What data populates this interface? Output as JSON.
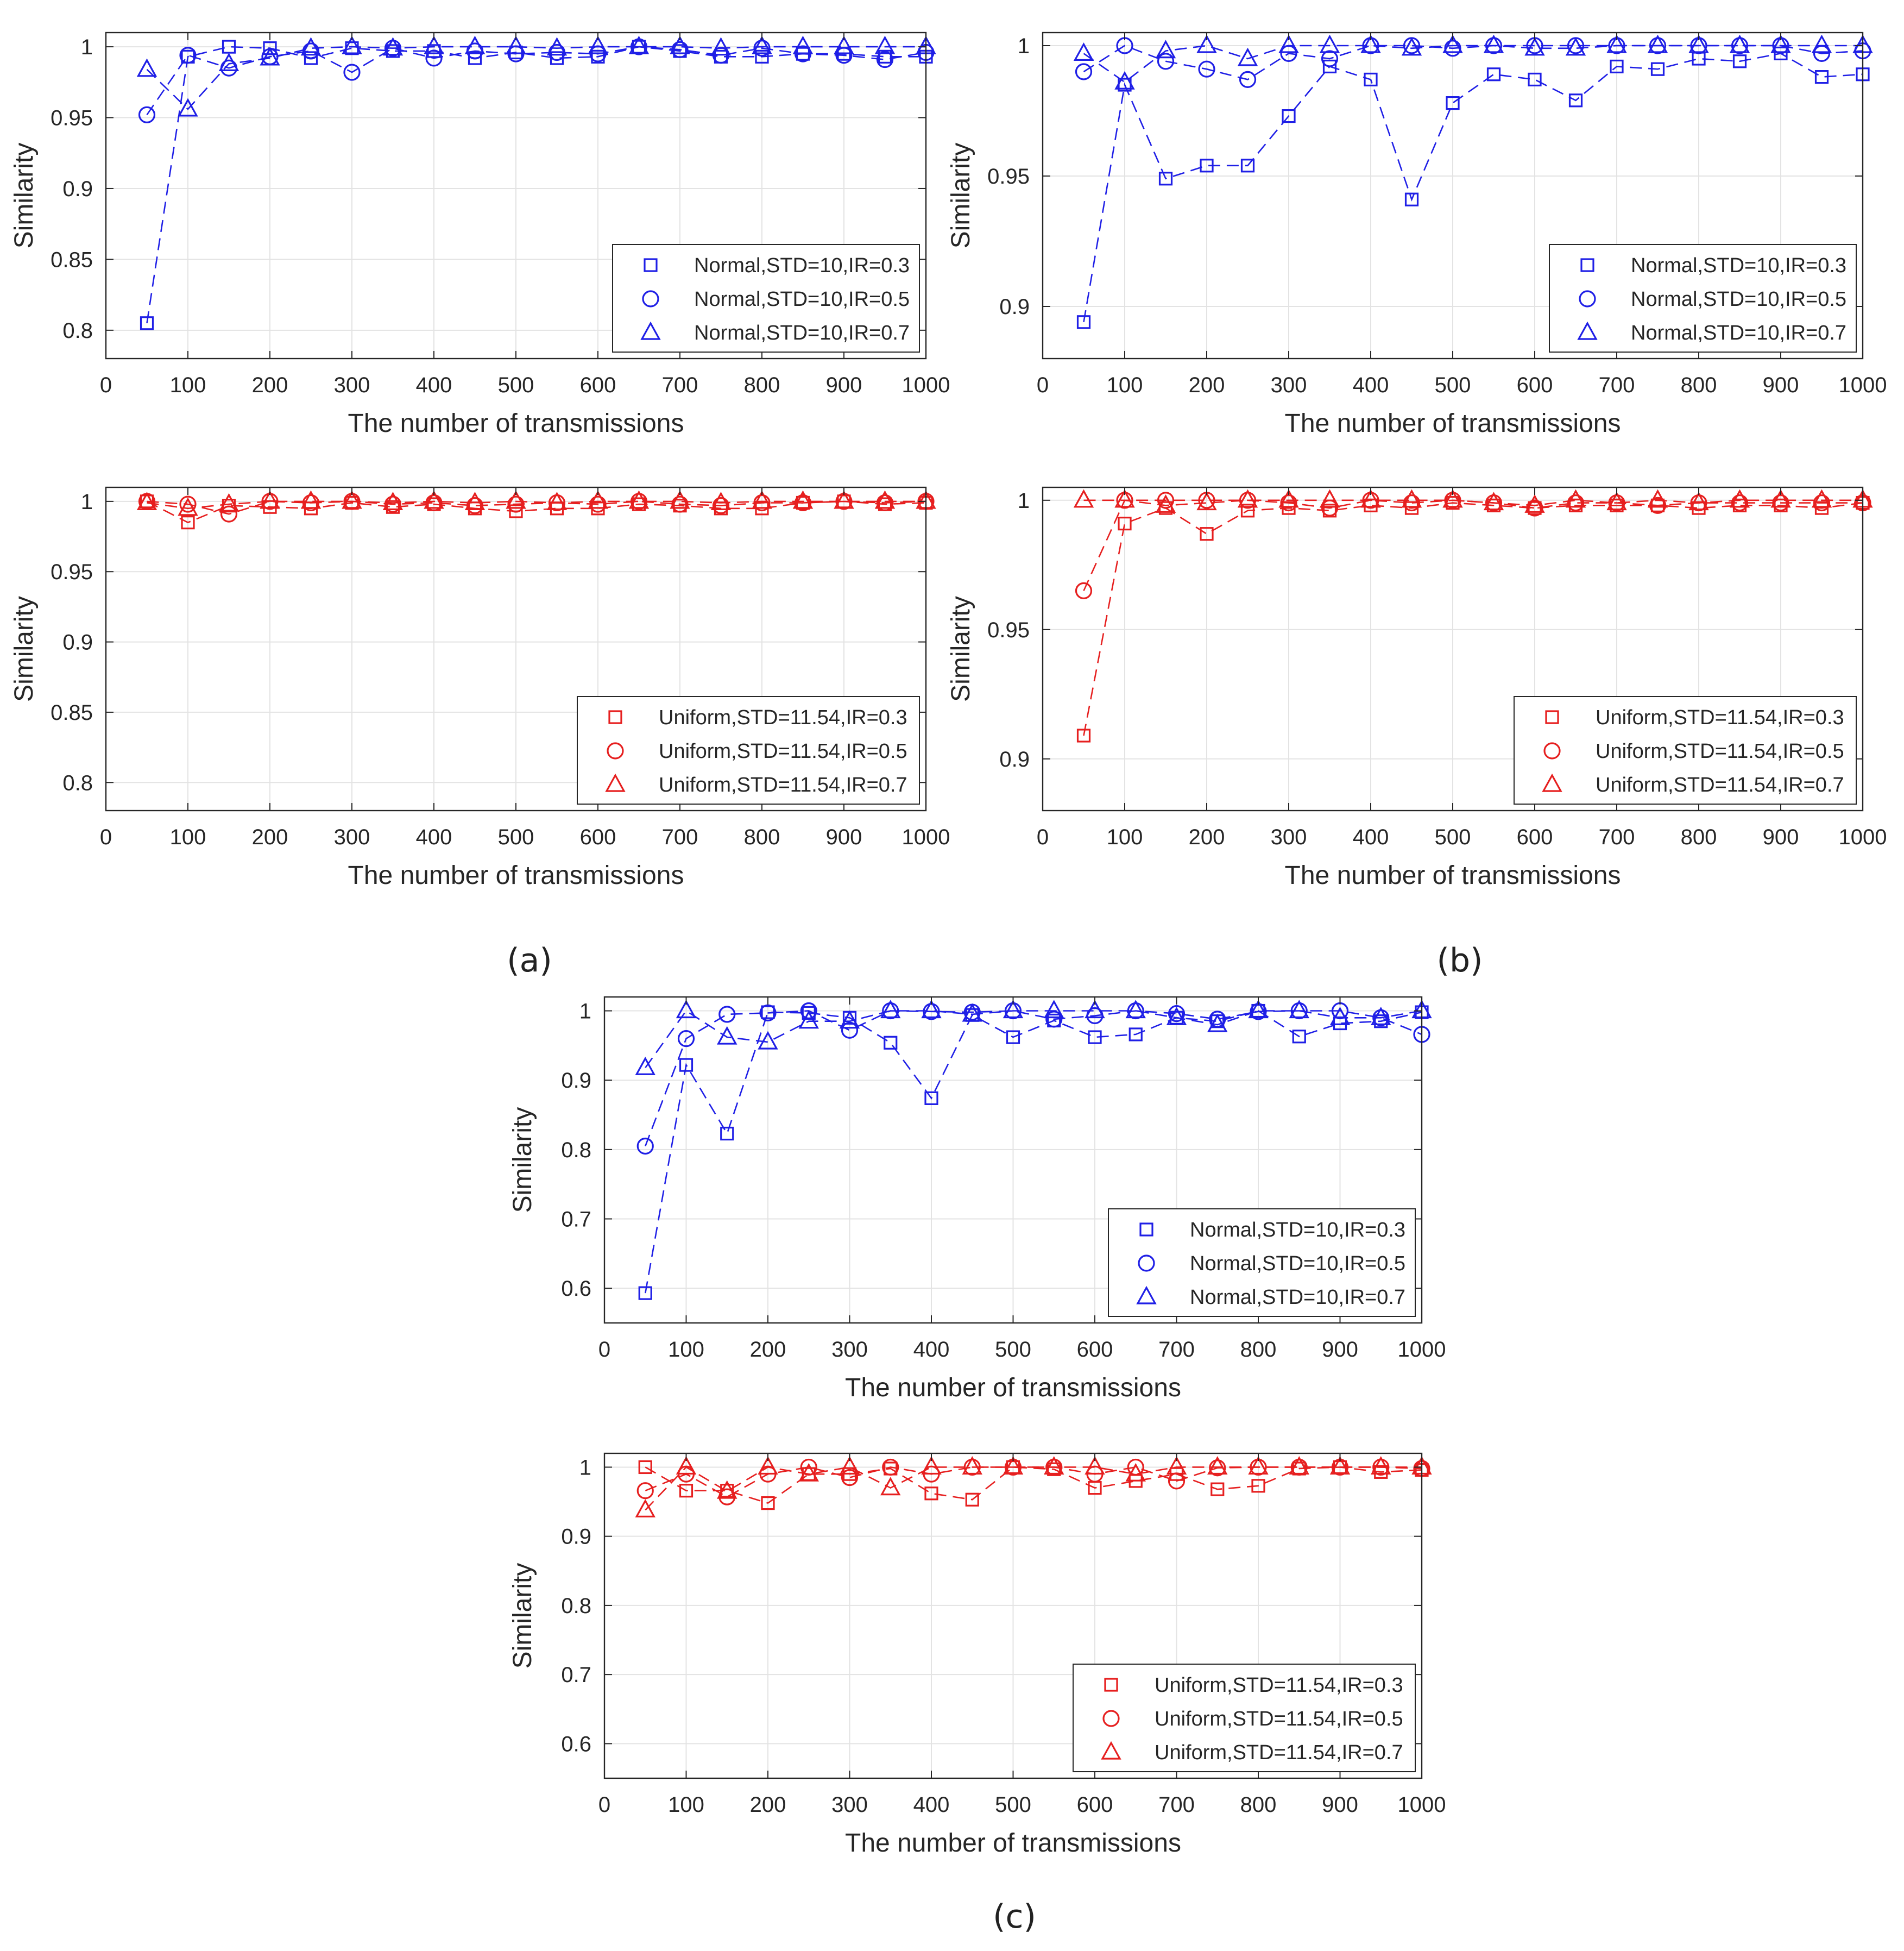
{
  "figure": {
    "captions": [
      "(a)",
      "(b)",
      "(c)"
    ],
    "colors": {
      "normal": "#1f1fe6",
      "uniform": "#e61f1f",
      "grid": "#e3e3e3",
      "axis": "#262626"
    }
  },
  "chart_data": [
    {
      "id": "a-normal",
      "type": "line",
      "panel": "(a)",
      "xlabel": "The number of transmissions",
      "ylabel": "Similarity",
      "xlim": [
        0,
        1000
      ],
      "ylim": [
        0.78,
        1.01
      ],
      "xticks": [
        0,
        100,
        200,
        300,
        400,
        500,
        600,
        700,
        800,
        900,
        1000
      ],
      "yticks": [
        0.8,
        0.85,
        0.9,
        0.95,
        1
      ],
      "ytick_labels": [
        "0.8",
        "0.85",
        "0.9",
        "0.95",
        "1"
      ],
      "legend_position": "bottom-right",
      "grid": true,
      "color_key": "normal",
      "x": [
        50,
        100,
        150,
        200,
        250,
        300,
        350,
        400,
        450,
        500,
        550,
        600,
        650,
        700,
        750,
        800,
        850,
        900,
        950,
        1000
      ],
      "series": [
        {
          "name": "Normal,STD=10,IR=0.3",
          "marker": "square",
          "values": [
            0.805,
            0.993,
            1.0,
            0.999,
            0.992,
            0.999,
            0.997,
            0.997,
            0.992,
            0.996,
            0.992,
            0.993,
            1.0,
            0.997,
            0.993,
            0.993,
            0.995,
            0.995,
            0.993,
            0.993
          ]
        },
        {
          "name": "Normal,STD=10,IR=0.5",
          "marker": "circle",
          "values": [
            0.952,
            0.994,
            0.985,
            0.993,
            0.997,
            0.982,
            0.999,
            0.992,
            0.997,
            0.995,
            0.996,
            0.995,
            1.0,
            0.998,
            0.994,
            0.999,
            0.995,
            0.994,
            0.991,
            0.996
          ]
        },
        {
          "name": "Normal,STD=10,IR=0.7",
          "marker": "triangle",
          "values": [
            0.984,
            0.956,
            0.988,
            0.992,
            0.999,
            1.0,
            0.999,
            1.0,
            1.0,
            1.0,
            0.999,
            1.0,
            1.0,
            1.0,
            0.999,
            1.0,
            1.0,
            1.0,
            1.0,
            1.0
          ]
        }
      ]
    },
    {
      "id": "a-uniform",
      "type": "line",
      "panel": "(a)",
      "xlabel": "The number of transmissions",
      "ylabel": "Similarity",
      "xlim": [
        0,
        1000
      ],
      "ylim": [
        0.78,
        1.01
      ],
      "xticks": [
        0,
        100,
        200,
        300,
        400,
        500,
        600,
        700,
        800,
        900,
        1000
      ],
      "yticks": [
        0.8,
        0.85,
        0.9,
        0.95,
        1
      ],
      "ytick_labels": [
        "0.8",
        "0.85",
        "0.9",
        "0.95",
        "1"
      ],
      "legend_position": "bottom-right",
      "grid": true,
      "color_key": "uniform",
      "x": [
        50,
        100,
        150,
        200,
        250,
        300,
        350,
        400,
        450,
        500,
        550,
        600,
        650,
        700,
        750,
        800,
        850,
        900,
        950,
        1000
      ],
      "series": [
        {
          "name": "Uniform,STD=11.54,IR=0.3",
          "marker": "square",
          "values": [
            1.0,
            0.985,
            0.997,
            0.996,
            0.995,
            0.999,
            0.996,
            0.998,
            0.995,
            0.993,
            0.995,
            0.995,
            0.998,
            0.997,
            0.995,
            0.995,
            0.999,
            1.0,
            0.998,
            0.999
          ]
        },
        {
          "name": "Uniform,STD=11.54,IR=0.5",
          "marker": "circle",
          "values": [
            1.0,
            0.998,
            0.991,
            1.0,
            0.999,
            1.0,
            0.998,
            0.999,
            0.997,
            0.998,
            0.999,
            0.998,
            1.0,
            0.998,
            0.997,
            0.999,
            0.999,
            1.0,
            0.999,
            1.0
          ]
        },
        {
          "name": "Uniform,STD=11.54,IR=0.7",
          "marker": "triangle",
          "values": [
            0.999,
            0.995,
            0.998,
            1.0,
            1.0,
            1.0,
            0.999,
            1.0,
            0.999,
            1.0,
            0.999,
            1.0,
            1.0,
            1.0,
            0.999,
            1.0,
            1.0,
            1.0,
            1.0,
            1.0
          ]
        }
      ]
    },
    {
      "id": "b-normal",
      "type": "line",
      "panel": "(b)",
      "xlabel": "The number of transmissions",
      "ylabel": "Similarity",
      "xlim": [
        0,
        1000
      ],
      "ylim": [
        0.88,
        1.005
      ],
      "xticks": [
        0,
        100,
        200,
        300,
        400,
        500,
        600,
        700,
        800,
        900,
        1000
      ],
      "yticks": [
        0.9,
        0.95,
        1
      ],
      "ytick_labels": [
        "0.9",
        "0.95",
        "1"
      ],
      "legend_position": "bottom-right",
      "grid": true,
      "color_key": "normal",
      "x": [
        50,
        100,
        150,
        200,
        250,
        300,
        350,
        400,
        450,
        500,
        550,
        600,
        650,
        700,
        750,
        800,
        850,
        900,
        950,
        1000
      ],
      "series": [
        {
          "name": "Normal,STD=10,IR=0.3",
          "marker": "square",
          "values": [
            0.894,
            0.985,
            0.949,
            0.954,
            0.954,
            0.973,
            0.992,
            0.987,
            0.941,
            0.978,
            0.989,
            0.987,
            0.979,
            0.992,
            0.991,
            0.995,
            0.994,
            0.997,
            0.988,
            0.989
          ]
        },
        {
          "name": "Normal,STD=10,IR=0.5",
          "marker": "circle",
          "values": [
            0.99,
            1.0,
            0.994,
            0.991,
            0.987,
            0.997,
            0.995,
            1.0,
            1.0,
            0.999,
            1.0,
            1.0,
            1.0,
            1.0,
            1.0,
            1.0,
            1.0,
            1.0,
            0.997,
            0.998
          ]
        },
        {
          "name": "Normal,STD=10,IR=0.7",
          "marker": "triangle",
          "values": [
            0.997,
            0.986,
            0.998,
            1.0,
            0.995,
            1.0,
            1.0,
            1.0,
            0.999,
            1.0,
            1.0,
            0.999,
            0.999,
            1.0,
            1.0,
            1.0,
            1.0,
            1.0,
            1.0,
            1.0
          ]
        }
      ]
    },
    {
      "id": "b-uniform",
      "type": "line",
      "panel": "(b)",
      "xlabel": "The number of transmissions",
      "ylabel": "Similarity",
      "xlim": [
        0,
        1000
      ],
      "ylim": [
        0.88,
        1.005
      ],
      "xticks": [
        0,
        100,
        200,
        300,
        400,
        500,
        600,
        700,
        800,
        900,
        1000
      ],
      "yticks": [
        0.9,
        0.95,
        1
      ],
      "ytick_labels": [
        "0.9",
        "0.95",
        "1"
      ],
      "legend_position": "bottom-right",
      "grid": true,
      "color_key": "uniform",
      "x": [
        50,
        100,
        150,
        200,
        250,
        300,
        350,
        400,
        450,
        500,
        550,
        600,
        650,
        700,
        750,
        800,
        850,
        900,
        950,
        1000
      ],
      "series": [
        {
          "name": "Uniform,STD=11.54,IR=0.3",
          "marker": "square",
          "values": [
            0.909,
            0.991,
            0.997,
            0.987,
            0.996,
            0.997,
            0.996,
            0.998,
            0.997,
            0.999,
            0.998,
            0.997,
            0.998,
            0.998,
            0.998,
            0.997,
            0.998,
            0.998,
            0.997,
            0.999
          ]
        },
        {
          "name": "Uniform,STD=11.54,IR=0.5",
          "marker": "circle",
          "values": [
            0.965,
            1.0,
            1.0,
            1.0,
            1.0,
            0.999,
            0.997,
            1.0,
            0.999,
            1.0,
            0.999,
            0.997,
            0.999,
            0.999,
            0.998,
            0.999,
            0.999,
            0.999,
            0.999,
            0.999
          ]
        },
        {
          "name": "Uniform,STD=11.54,IR=0.7",
          "marker": "triangle",
          "values": [
            1.0,
            1.0,
            0.998,
            0.999,
            1.0,
            1.0,
            1.0,
            1.0,
            1.0,
            1.0,
            0.999,
            0.998,
            1.0,
            0.999,
            1.0,
            0.999,
            1.0,
            1.0,
            1.0,
            1.0
          ]
        }
      ]
    },
    {
      "id": "c-normal",
      "type": "line",
      "panel": "(c)",
      "xlabel": "The number of transmissions",
      "ylabel": "Similarity",
      "xlim": [
        0,
        1000
      ],
      "ylim": [
        0.55,
        1.02
      ],
      "xticks": [
        0,
        100,
        200,
        300,
        400,
        500,
        600,
        700,
        800,
        900,
        1000
      ],
      "yticks": [
        0.6,
        0.7,
        0.8,
        0.9,
        1
      ],
      "ytick_labels": [
        "0.6",
        "0.7",
        "0.8",
        "0.9",
        "1"
      ],
      "legend_position": "bottom-right",
      "grid": true,
      "color_key": "normal",
      "x": [
        50,
        100,
        150,
        200,
        250,
        300,
        350,
        400,
        450,
        500,
        550,
        600,
        650,
        700,
        750,
        800,
        850,
        900,
        950,
        1000
      ],
      "series": [
        {
          "name": "Normal,STD=10,IR=0.3",
          "marker": "square",
          "values": [
            0.593,
            0.922,
            0.823,
            0.998,
            0.997,
            0.99,
            0.954,
            0.874,
            0.994,
            0.962,
            0.986,
            0.962,
            0.966,
            0.99,
            0.985,
            1.0,
            0.963,
            0.982,
            0.985,
            0.998
          ]
        },
        {
          "name": "Normal,STD=10,IR=0.5",
          "marker": "circle",
          "values": [
            0.805,
            0.96,
            0.995,
            0.997,
            1.0,
            0.972,
            1.0,
            0.999,
            0.998,
            1.0,
            0.988,
            0.993,
            1.0,
            0.996,
            0.988,
            0.999,
            1.0,
            1.0,
            0.99,
            0.966
          ]
        },
        {
          "name": "Normal,STD=10,IR=0.7",
          "marker": "triangle",
          "values": [
            0.918,
            1.0,
            0.962,
            0.955,
            0.985,
            0.985,
            1.0,
            1.0,
            0.995,
            1.0,
            1.0,
            1.0,
            1.0,
            0.99,
            0.98,
            1.0,
            1.0,
            0.99,
            0.99,
            1.0
          ]
        }
      ]
    },
    {
      "id": "c-uniform",
      "type": "line",
      "panel": "(c)",
      "xlabel": "The number of transmissions",
      "ylabel": "Similarity",
      "xlim": [
        0,
        1000
      ],
      "ylim": [
        0.55,
        1.02
      ],
      "xticks": [
        0,
        100,
        200,
        300,
        400,
        500,
        600,
        700,
        800,
        900,
        1000
      ],
      "yticks": [
        0.6,
        0.7,
        0.8,
        0.9,
        1
      ],
      "ytick_labels": [
        "0.6",
        "0.7",
        "0.8",
        "0.9",
        "1"
      ],
      "legend_position": "bottom-right",
      "grid": true,
      "color_key": "uniform",
      "x": [
        50,
        100,
        150,
        200,
        250,
        300,
        350,
        400,
        450,
        500,
        550,
        600,
        650,
        700,
        750,
        800,
        850,
        900,
        950,
        1000
      ],
      "series": [
        {
          "name": "Uniform,STD=11.54,IR=0.3",
          "marker": "square",
          "values": [
            1.0,
            0.966,
            0.966,
            0.948,
            0.99,
            0.99,
            0.998,
            0.962,
            0.953,
            1.0,
            0.997,
            0.97,
            0.98,
            0.99,
            0.968,
            0.973,
            0.998,
            1.0,
            0.993,
            0.996
          ]
        },
        {
          "name": "Uniform,STD=11.54,IR=0.5",
          "marker": "circle",
          "values": [
            0.966,
            0.99,
            0.957,
            0.99,
            1.0,
            0.985,
            1.0,
            0.99,
            1.0,
            1.0,
            1.0,
            0.99,
            1.0,
            0.98,
            0.999,
            1.0,
            1.0,
            1.0,
            1.0,
            0.998
          ]
        },
        {
          "name": "Uniform,STD=11.54,IR=0.7",
          "marker": "triangle",
          "values": [
            0.938,
            1.0,
            0.965,
            1.0,
            0.99,
            1.0,
            0.97,
            1.0,
            1.0,
            1.0,
            1.0,
            1.0,
            0.99,
            1.0,
            1.0,
            1.0,
            1.0,
            1.0,
            1.0,
            1.0
          ]
        }
      ]
    }
  ]
}
